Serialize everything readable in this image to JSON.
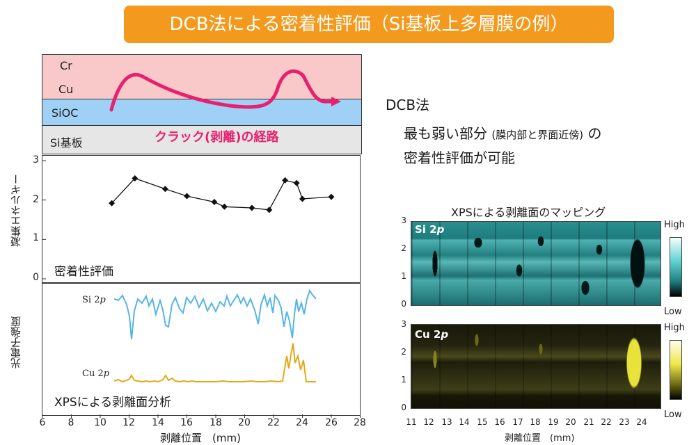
{
  "title": "DCB法による密着性評価（Si基板上多層膜の例）",
  "layers": {
    "cr": "Cr",
    "cu": "Cu",
    "sioc": "SiOC",
    "si": "Si基板"
  },
  "crack_label": "クラック(剥離)の経路",
  "right_text": {
    "heading": "DCB法",
    "line1_main": "最も弱い部分",
    "line1_paren": "(膜内部と界面近傍)",
    "line1_end": "の",
    "line2": "密着性評価が可能"
  },
  "energy_panel": {
    "ylabel": "凝集エネルギー",
    "caption": "密着性評価",
    "yticks": [
      "3",
      "2",
      "1",
      "0"
    ]
  },
  "xps_panel": {
    "ylabel": "光電子強度",
    "caption": "XPSによる剥離面分析",
    "si_label_main": "Si 2",
    "si_label_p": "p",
    "cu_label_main": "Cu 2",
    "cu_label_p": "p"
  },
  "x_axis": {
    "label": "剥離位置　(mm)",
    "ticks": [
      "6",
      "8",
      "10",
      "12",
      "14",
      "16",
      "18",
      "20",
      "22",
      "24",
      "26",
      "28"
    ]
  },
  "mapping": {
    "title": "XPSによる剥離面のマッピング",
    "si_label_main": "Si 2",
    "si_label_p": "p",
    "cu_label_main": "Cu 2",
    "cu_label_p": "p",
    "yticks": [
      "3",
      "2",
      "1",
      "0"
    ],
    "xticks": [
      "11",
      "12",
      "13",
      "14",
      "15",
      "16",
      "17",
      "18",
      "19",
      "20",
      "21",
      "22",
      "23",
      "24"
    ],
    "xlabel": "剥離位置　(mm)",
    "high": "High",
    "low": "Low"
  },
  "colors": {
    "banner": "#f39a1e",
    "cr": "#f9c9c9",
    "sioc": "#9fd0f5",
    "si": "#e6e6e6",
    "crack": "#e8206e",
    "si_trace": "#56b4e9",
    "cu_trace": "#e6a817"
  },
  "chart_data": {
    "type": "line",
    "x_unit": "mm",
    "series": [
      {
        "name": "凝集エネルギー",
        "points": [
          [
            10.8,
            1.92
          ],
          [
            12.4,
            2.55
          ],
          [
            14.5,
            2.28
          ],
          [
            16,
            2.1
          ],
          [
            17.9,
            1.95
          ],
          [
            18.6,
            1.83
          ],
          [
            20.5,
            1.8
          ],
          [
            21.7,
            1.75
          ],
          [
            22.8,
            2.5
          ],
          [
            23.6,
            2.43
          ],
          [
            24,
            2.03
          ],
          [
            26,
            2.08
          ]
        ]
      }
    ],
    "xlim": [
      6,
      28
    ],
    "ylim": [
      0,
      3
    ]
  }
}
